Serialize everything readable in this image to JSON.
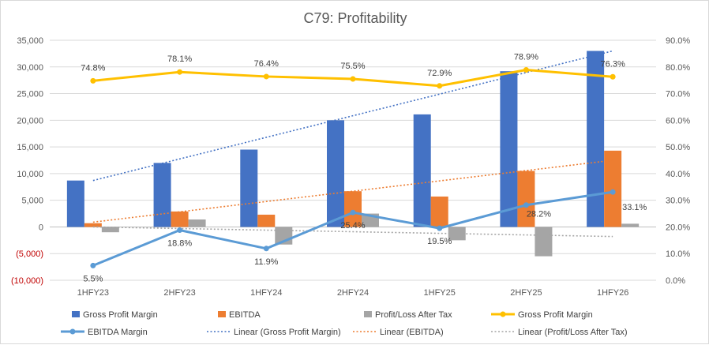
{
  "chart_data": {
    "type": "bar",
    "title": "C79: Profitability",
    "categories": [
      "1HFY23",
      "2HFY23",
      "1HFY24",
      "2HFY24",
      "1HFY25",
      "2HFY25",
      "1HFY26"
    ],
    "y_left": {
      "range": [
        -10000,
        35000
      ],
      "ticks": [
        -10000,
        -5000,
        0,
        5000,
        10000,
        15000,
        20000,
        25000,
        30000,
        35000
      ],
      "tick_labels": [
        "(10,000)",
        "(5,000)",
        "0",
        "5,000",
        "10,000",
        "15,000",
        "20,000",
        "25,000",
        "30,000",
        "35,000"
      ]
    },
    "y_right": {
      "range": [
        0,
        90
      ],
      "ticks": [
        0,
        10,
        20,
        30,
        40,
        50,
        60,
        70,
        80,
        90
      ],
      "tick_labels": [
        "0.0%",
        "10.0%",
        "20.0%",
        "30.0%",
        "40.0%",
        "50.0%",
        "60.0%",
        "70.0%",
        "80.0%",
        "90.0%"
      ]
    },
    "grid": true,
    "legend_position": "bottom",
    "bar_series": [
      {
        "name": "Gross Profit Margin",
        "color": "#4472c4",
        "values": [
          8700,
          12000,
          14500,
          20000,
          21100,
          29200,
          33000
        ]
      },
      {
        "name": "EBITDA",
        "color": "#ed7d31",
        "values": [
          700,
          2900,
          2300,
          6700,
          5700,
          10500,
          14300
        ]
      },
      {
        "name": "Profit/Loss After Tax",
        "color": "#a5a5a5",
        "values": [
          -1000,
          1400,
          -3300,
          2500,
          -2500,
          -5500,
          600
        ]
      }
    ],
    "line_series": [
      {
        "name": "Gross Profit Margin",
        "color": "#ffc000",
        "axis": "right",
        "values": [
          74.8,
          78.1,
          76.4,
          75.5,
          72.9,
          78.9,
          76.3
        ],
        "labels": [
          "74.8%",
          "78.1%",
          "76.4%",
          "75.5%",
          "72.9%",
          "78.9%",
          "76.3%"
        ]
      },
      {
        "name": "EBITDA Margin",
        "color": "#5b9bd5",
        "axis": "right",
        "values": [
          5.5,
          18.8,
          11.9,
          25.4,
          19.5,
          28.2,
          33.1
        ],
        "labels": [
          "5.5%",
          "18.8%",
          "11.9%",
          "25.4%",
          "19.5%",
          "28.2%",
          "33.1%"
        ]
      }
    ],
    "trendlines": [
      {
        "name": "Linear (Gross Profit Margin)",
        "color": "#4472c4",
        "from": 8700,
        "to": 33000
      },
      {
        "name": "Linear (EBITDA)",
        "color": "#ed7d31",
        "from": 900,
        "to": 12500
      },
      {
        "name": "Linear (Profit/Loss After Tax)",
        "color": "#a5a5a5",
        "from": 0,
        "to": -1800
      }
    ],
    "legend": [
      {
        "label": "Gross Profit Margin",
        "kind": "bar",
        "color": "#4472c4"
      },
      {
        "label": "EBITDA",
        "kind": "bar",
        "color": "#ed7d31"
      },
      {
        "label": "Profit/Loss After Tax",
        "kind": "bar",
        "color": "#a5a5a5"
      },
      {
        "label": "Gross Profit Margin",
        "kind": "line",
        "color": "#ffc000"
      },
      {
        "label": "EBITDA Margin",
        "kind": "line",
        "color": "#5b9bd5"
      },
      {
        "label": "Linear (Gross Profit Margin)",
        "kind": "dotted",
        "color": "#4472c4"
      },
      {
        "label": "Linear (EBITDA)",
        "kind": "dotted",
        "color": "#ed7d31"
      },
      {
        "label": "Linear (Profit/Loss After Tax)",
        "kind": "dotted",
        "color": "#a5a5a5"
      }
    ]
  }
}
